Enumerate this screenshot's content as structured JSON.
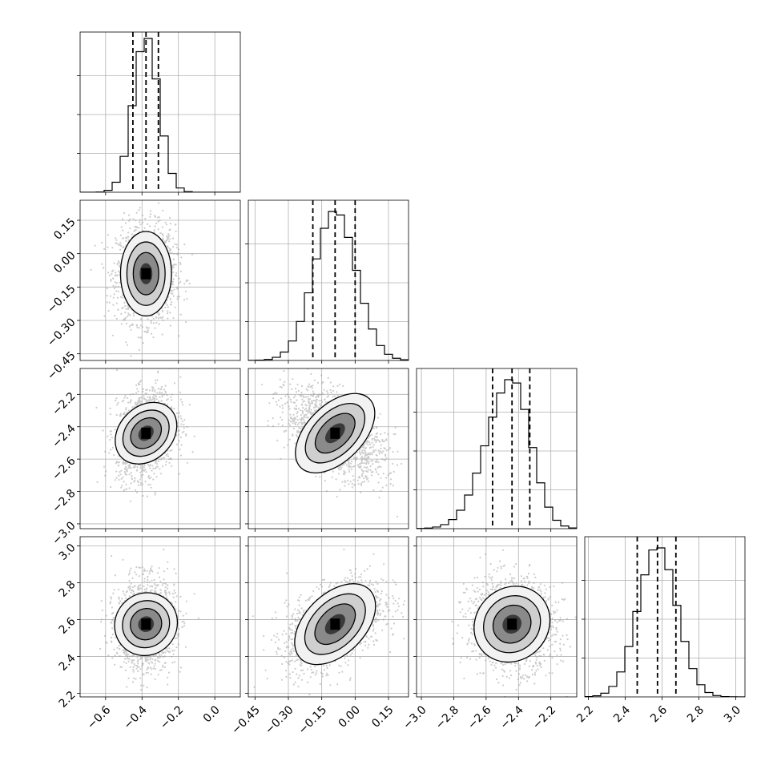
{
  "chart_data": {
    "type": "corner",
    "title": "",
    "variables": [
      {
        "index": 0,
        "median": -0.378,
        "quantiles": [
          -0.45,
          -0.378,
          -0.31
        ],
        "range": [
          -0.74,
          0.14
        ],
        "ticks": [
          "−0.6",
          "−0.4",
          "−0.2",
          "0.0"
        ],
        "tick_values": [
          -0.6,
          -0.4,
          -0.2,
          0.0
        ],
        "hist_peak": 0.96
      },
      {
        "index": 1,
        "median": -0.09,
        "quantiles": [
          -0.19,
          -0.09,
          0.0
        ],
        "range": [
          -0.48,
          0.24
        ],
        "ticks_y": [
          "0.15",
          "0.00",
          "−0.15",
          "−0.30",
          "−0.45"
        ],
        "ticks_x": [
          "−0.45",
          "−0.30",
          "−0.15",
          "0.00",
          "0.15"
        ],
        "tick_values": [
          0.15,
          0.0,
          -0.15,
          -0.3,
          -0.45
        ],
        "hist_peak": 0.93
      },
      {
        "index": 2,
        "median": -2.44,
        "quantiles": [
          -2.56,
          -2.44,
          -2.33
        ],
        "range": [
          -3.03,
          -2.04
        ],
        "ticks_y": [
          "−2.2",
          "−2.4",
          "−2.6",
          "−2.8",
          "−3.0"
        ],
        "ticks_x": [
          "−3.0",
          "−2.8",
          "−2.6",
          "−2.4",
          "−2.2"
        ],
        "tick_values": [
          -2.2,
          -2.4,
          -2.6,
          -2.8,
          -3.0
        ],
        "hist_peak": 0.93
      },
      {
        "index": 3,
        "median": 2.575,
        "quantiles": [
          2.465,
          2.575,
          2.675
        ],
        "range": [
          2.18,
          3.05
        ],
        "ticks_y": [
          "3.0",
          "2.8",
          "2.6",
          "2.4",
          "2.2"
        ],
        "ticks_x": [
          "2.2",
          "2.4",
          "2.6",
          "2.8",
          "3.0"
        ],
        "tick_values": [
          3.0,
          2.8,
          2.6,
          2.4,
          2.2
        ],
        "hist_peak": 0.93
      }
    ],
    "correlations": [
      {
        "pair": [
          1,
          0
        ],
        "rho": 0.0
      },
      {
        "pair": [
          2,
          0
        ],
        "rho": 0.25
      },
      {
        "pair": [
          2,
          1
        ],
        "rho": -0.5
      },
      {
        "pair": [
          3,
          0
        ],
        "rho": 0.05
      },
      {
        "pair": [
          3,
          1
        ],
        "rho": 0.45
      },
      {
        "pair": [
          3,
          2
        ],
        "rho": -0.1
      }
    ],
    "grid": true,
    "histogram_style": "step",
    "quantile_lines": "dashed",
    "colors": {
      "line": "#000000",
      "points": "#9a9a9a",
      "grid": "#b0b0b0",
      "frame": "#000000"
    }
  }
}
